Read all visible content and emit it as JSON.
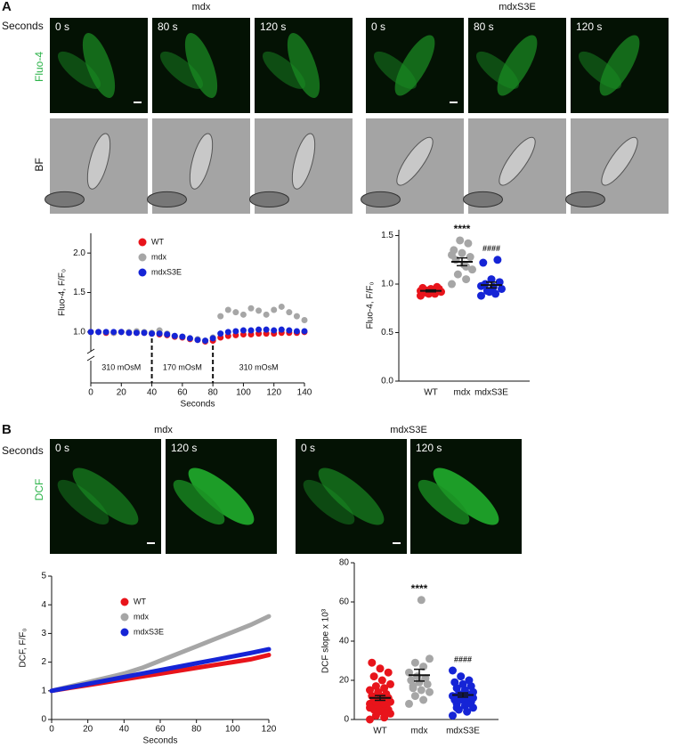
{
  "panels": [
    {
      "label": "A",
      "row_label": "Seconds",
      "channels": [
        "Fluo-4",
        "BF"
      ],
      "groups": [
        {
          "title": "mdx",
          "times": [
            "0 s",
            "80 s",
            "120 s"
          ]
        },
        {
          "title": "mdxS3E",
          "times": [
            "0 s",
            "80 s",
            "120 s"
          ]
        }
      ]
    },
    {
      "label": "B",
      "row_label": "Seconds",
      "channels": [
        "DCF"
      ],
      "groups": [
        {
          "title": "mdx",
          "times": [
            "0 s",
            "120 s"
          ]
        },
        {
          "title": "mdxS3E",
          "times": [
            "0 s",
            "120 s"
          ]
        }
      ]
    }
  ],
  "chart_data": [
    {
      "type": "scatter",
      "xlabel": "Seconds",
      "ylabel": "Fluo-4, F/F₀",
      "x": [
        0,
        5,
        10,
        15,
        20,
        25,
        30,
        35,
        40,
        45,
        50,
        55,
        60,
        65,
        70,
        75,
        80,
        85,
        90,
        95,
        100,
        105,
        110,
        115,
        120,
        125,
        130,
        135,
        140
      ],
      "series": [
        {
          "name": "WT",
          "color": "#e8141b",
          "values": [
            1.0,
            1.0,
            0.99,
            0.99,
            1.0,
            0.99,
            0.99,
            0.99,
            0.98,
            0.97,
            0.96,
            0.94,
            0.93,
            0.91,
            0.9,
            0.88,
            0.89,
            0.93,
            0.95,
            0.96,
            0.97,
            0.97,
            0.98,
            0.98,
            0.98,
            0.99,
            0.99,
            0.99,
            1.0
          ]
        },
        {
          "name": "mdx",
          "color": "#a6a6a6",
          "values": [
            1.0,
            1.0,
            1.0,
            0.99,
            1.0,
            1.0,
            1.01,
            1.0,
            0.99,
            1.02,
            0.98,
            0.95,
            0.94,
            0.92,
            0.91,
            0.89,
            0.93,
            1.2,
            1.28,
            1.25,
            1.22,
            1.3,
            1.27,
            1.22,
            1.28,
            1.32,
            1.25,
            1.2,
            1.15
          ]
        },
        {
          "name": "mdxS3E",
          "color": "#1524d6",
          "values": [
            1.0,
            1.0,
            1.0,
            1.0,
            1.0,
            0.99,
            0.99,
            0.99,
            0.98,
            0.98,
            0.97,
            0.95,
            0.94,
            0.92,
            0.9,
            0.89,
            0.92,
            0.98,
            1.0,
            1.01,
            1.02,
            1.02,
            1.03,
            1.03,
            1.02,
            1.03,
            1.02,
            1.01,
            1.01
          ]
        }
      ],
      "xlim": [
        0,
        140
      ],
      "xticks": [
        0,
        20,
        40,
        60,
        80,
        100,
        120,
        140
      ],
      "ylim": [
        0.75,
        2.25
      ],
      "yticks": [
        {
          "value": 1,
          "label": "1.0"
        },
        1.5,
        {
          "value": 2,
          "label": "2.0"
        }
      ],
      "vlines": [
        40,
        80
      ],
      "annotations": [
        "310 mOsM",
        "170 mOsM",
        "310 mOsM"
      ]
    },
    {
      "type": "strip",
      "ylabel": "Fluo-4, F/F₀",
      "categories": [
        "WT",
        "mdx",
        "mdxS3E"
      ],
      "colors": [
        "#e8141b",
        "#a6a6a6",
        "#1524d6"
      ],
      "values": [
        [
          0.88,
          0.9,
          0.91,
          0.92,
          0.93,
          0.94,
          0.95,
          0.95,
          0.96,
          0.97,
          0.9,
          0.93
        ],
        [
          1.0,
          1.05,
          1.1,
          1.15,
          1.2,
          1.25,
          1.28,
          1.32,
          1.35,
          1.42,
          1.45,
          1.3,
          1.18
        ],
        [
          0.88,
          0.9,
          0.93,
          0.95,
          0.97,
          1.0,
          1.02,
          1.05,
          1.22,
          1.25,
          0.92,
          0.98
        ]
      ],
      "means": [
        0.93,
        1.23,
        0.99
      ],
      "sem": [
        0.01,
        0.04,
        0.03
      ],
      "significance": [
        null,
        "****",
        "####"
      ],
      "ylim": [
        0,
        1.56
      ],
      "yticks": [
        {
          "value": 0,
          "label": "0.0"
        },
        0.5,
        {
          "value": 1,
          "label": "1.0"
        },
        1.5
      ]
    },
    {
      "type": "line",
      "xlabel": "Seconds",
      "ylabel": "DCF, F/F₀",
      "x": [
        0,
        10,
        20,
        30,
        40,
        50,
        60,
        70,
        80,
        90,
        100,
        110,
        120
      ],
      "series": [
        {
          "name": "WT",
          "color": "#e8141b",
          "values": [
            1,
            1.1,
            1.2,
            1.3,
            1.4,
            1.5,
            1.6,
            1.7,
            1.8,
            1.9,
            2.0,
            2.1,
            2.25
          ]
        },
        {
          "name": "mdx",
          "color": "#a6a6a6",
          "values": [
            1,
            1.15,
            1.3,
            1.45,
            1.6,
            1.8,
            2.05,
            2.3,
            2.55,
            2.8,
            3.05,
            3.3,
            3.6
          ]
        },
        {
          "name": "mdxS3E",
          "color": "#1524d6",
          "values": [
            1,
            1.12,
            1.24,
            1.36,
            1.48,
            1.6,
            1.72,
            1.84,
            1.96,
            2.08,
            2.2,
            2.32,
            2.45
          ]
        }
      ],
      "xlim": [
        0,
        120
      ],
      "xticks": [
        0,
        20,
        40,
        60,
        80,
        100,
        120
      ],
      "ylim": [
        0,
        5
      ],
      "yticks": [
        0,
        1,
        2,
        3,
        4,
        5
      ]
    },
    {
      "type": "strip",
      "ylabel": "DCF slope x 10³",
      "categories": [
        "WT",
        "mdx",
        "mdxS3E"
      ],
      "colors": [
        "#e8141b",
        "#a6a6a6",
        "#1524d6"
      ],
      "values": [
        [
          0,
          1,
          2,
          3,
          4,
          5,
          5,
          6,
          6,
          7,
          7,
          8,
          8,
          9,
          9,
          10,
          10,
          11,
          12,
          12,
          13,
          14,
          15,
          16,
          17,
          18,
          20,
          22,
          24,
          26,
          29,
          3,
          4,
          6,
          8
        ],
        [
          8,
          10,
          12,
          14,
          15,
          16,
          18,
          19,
          20,
          21,
          22,
          24,
          27,
          29,
          31,
          61,
          17
        ],
        [
          2,
          4,
          5,
          6,
          7,
          8,
          9,
          10,
          10,
          11,
          12,
          12,
          13,
          13,
          14,
          15,
          16,
          17,
          18,
          19,
          20,
          22,
          25,
          8,
          10,
          11,
          14,
          6
        ]
      ],
      "means": [
        11,
        22.6,
        12.5
      ],
      "sem": [
        1.2,
        3.0,
        1.1
      ],
      "significance": [
        null,
        "****",
        "####"
      ],
      "ylim": [
        0,
        80
      ],
      "yticks": [
        0,
        20,
        40,
        60,
        80
      ]
    }
  ]
}
